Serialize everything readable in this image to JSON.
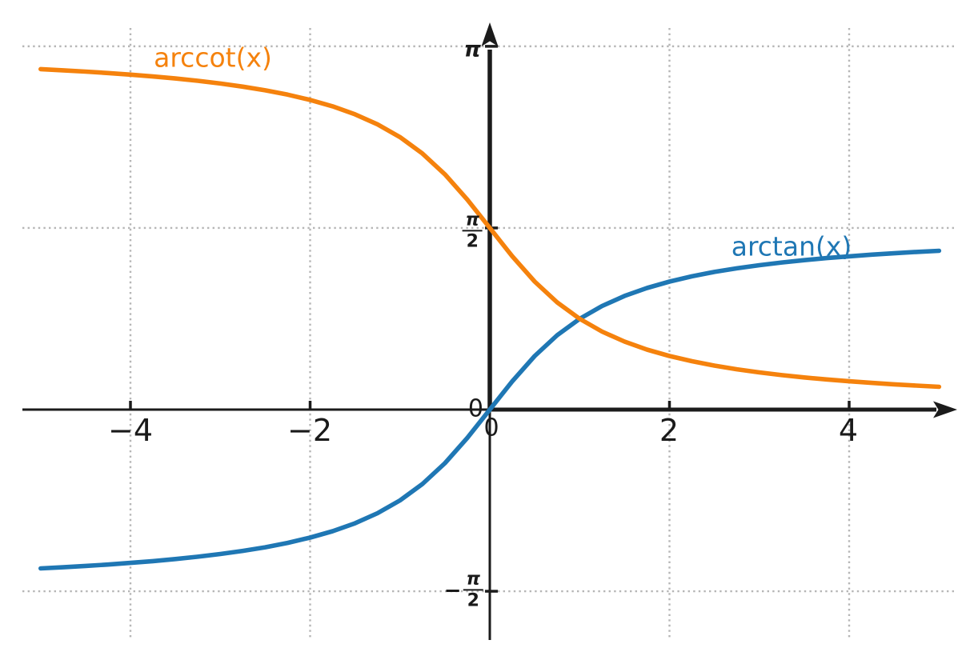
{
  "figure": {
    "background": "#ffffff",
    "axis_color": "#1b1b1b",
    "grid_color": "#b6b6b6",
    "text_color": "#1a1a1a"
  },
  "chart_data": {
    "type": "line",
    "title": "",
    "xlabel": "",
    "ylabel": "",
    "x_range": [
      -5.2,
      5.2
    ],
    "y_range": [
      -2.0,
      3.35
    ],
    "grid": "dotted gridlines at x = -4,-2,2,4 and y = pi, pi/2, -pi/2",
    "legend_position": "inline curve labels",
    "x_ticks": [
      {
        "value": -4,
        "label": "−4"
      },
      {
        "value": -2,
        "label": "−2"
      },
      {
        "value": 0,
        "label": "0"
      },
      {
        "value": 2,
        "label": "2"
      },
      {
        "value": 4,
        "label": "4"
      }
    ],
    "y_ticks": [
      {
        "value": 3.1416,
        "label": "π",
        "type": "plain"
      },
      {
        "value": 1.5708,
        "label": "π/2",
        "type": "fraction",
        "sign": "",
        "num": "π",
        "den": "2"
      },
      {
        "value": 0,
        "label": "0",
        "type": "plain"
      },
      {
        "value": -1.5708,
        "label": "−π/2",
        "type": "fraction",
        "sign": "−",
        "num": "π",
        "den": "2"
      }
    ],
    "series": [
      {
        "name": "arctan(x)",
        "color": "#1f77b4",
        "x": [
          -5,
          -4.75,
          -4.5,
          -4.25,
          -4,
          -3.75,
          -3.5,
          -3.25,
          -3,
          -2.75,
          -2.5,
          -2.25,
          -2,
          -1.75,
          -1.5,
          -1.25,
          -1,
          -0.75,
          -0.5,
          -0.25,
          0,
          0.25,
          0.5,
          0.75,
          1,
          1.25,
          1.5,
          1.75,
          2,
          2.25,
          2.5,
          2.75,
          3,
          3.25,
          3.5,
          3.75,
          4,
          4.25,
          4.5,
          4.75,
          5
        ],
        "y": [
          -1.3734,
          -1.3633,
          -1.3521,
          -1.3397,
          -1.3258,
          -1.3102,
          -1.2925,
          -1.2723,
          -1.249,
          -1.222,
          -1.1903,
          -1.1526,
          -1.1071,
          -1.0517,
          -0.9828,
          -0.8961,
          -0.7854,
          -0.6435,
          -0.4636,
          -0.245,
          0,
          0.245,
          0.4636,
          0.6435,
          0.7854,
          0.8961,
          0.9828,
          1.0517,
          1.1071,
          1.1526,
          1.1903,
          1.222,
          1.249,
          1.2723,
          1.2925,
          1.3102,
          1.3258,
          1.3397,
          1.3521,
          1.3633,
          1.3734
        ]
      },
      {
        "name": "arccot(x)",
        "color": "#f5820d",
        "x": [
          -5,
          -4.75,
          -4.5,
          -4.25,
          -4,
          -3.75,
          -3.5,
          -3.25,
          -3,
          -2.75,
          -2.5,
          -2.25,
          -2,
          -1.75,
          -1.5,
          -1.25,
          -1,
          -0.75,
          -0.5,
          -0.25,
          0,
          0.25,
          0.5,
          0.75,
          1,
          1.25,
          1.5,
          1.75,
          2,
          2.25,
          2.5,
          2.75,
          3,
          3.25,
          3.5,
          3.75,
          4,
          4.25,
          4.5,
          4.75,
          5
        ],
        "y": [
          2.9442,
          2.9341,
          2.9229,
          2.9105,
          2.8966,
          2.881,
          2.8633,
          2.8431,
          2.8198,
          2.7928,
          2.7611,
          2.7234,
          2.6779,
          2.6225,
          2.5536,
          2.4669,
          2.3562,
          2.2143,
          2.0344,
          1.8158,
          1.5708,
          1.3258,
          1.1071,
          0.9273,
          0.7854,
          0.6747,
          0.588,
          0.5191,
          0.4636,
          0.4182,
          0.3805,
          0.3488,
          0.3217,
          0.2985,
          0.2783,
          0.2606,
          0.245,
          0.2311,
          0.2187,
          0.2075,
          0.1974
        ]
      }
    ]
  }
}
